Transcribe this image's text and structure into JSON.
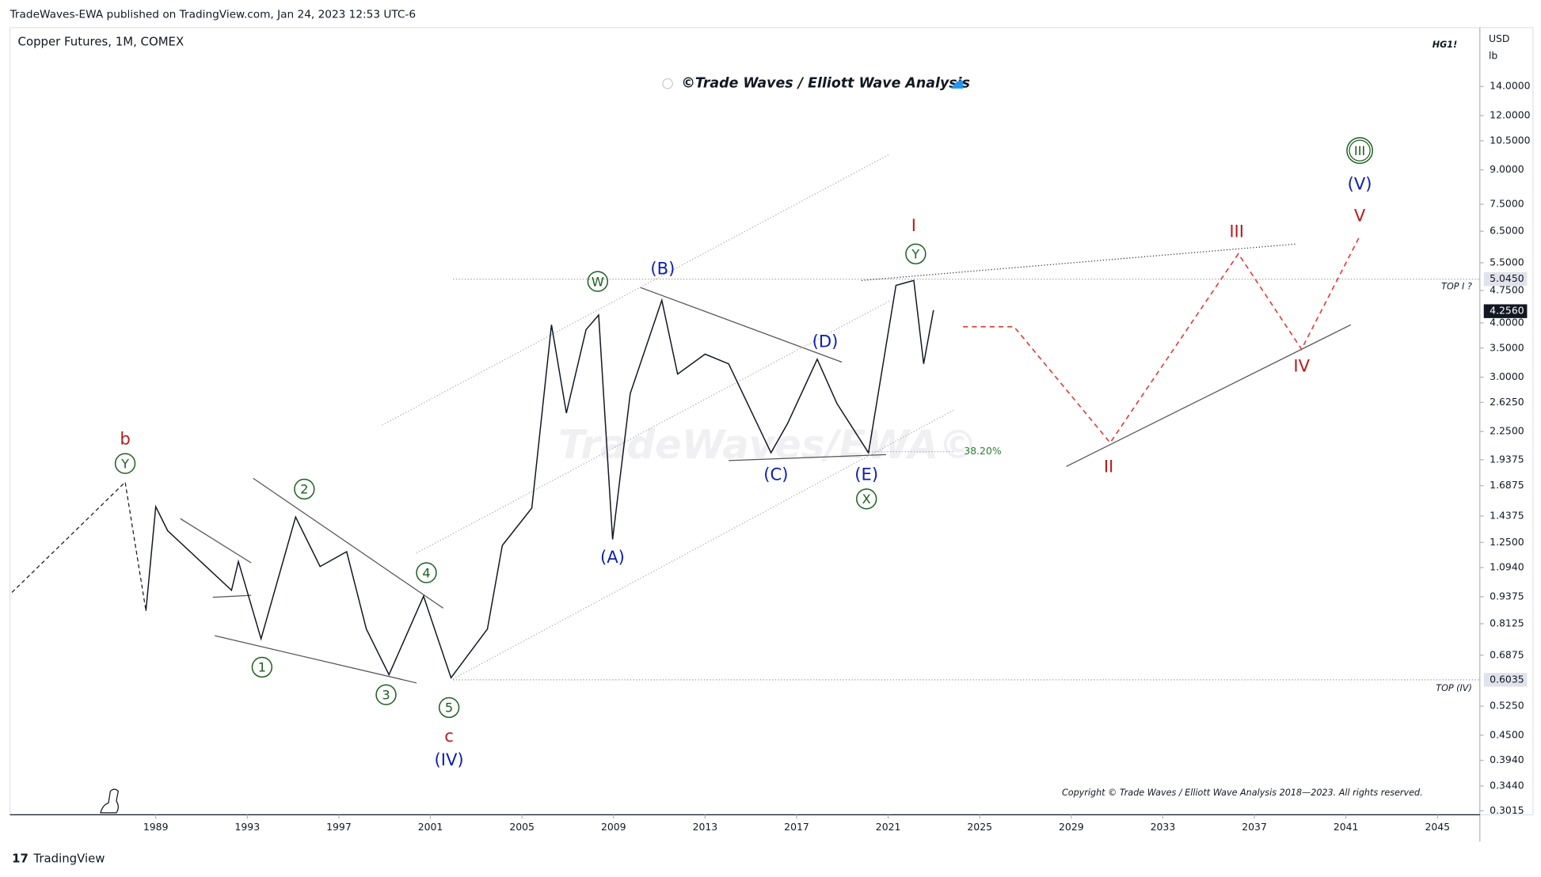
{
  "header": {
    "publisher": "TradeWaves-EWA published on TradingView.com, Jan 24, 2023 12:53 UTC-6",
    "footer": "TradingView"
  },
  "chart_data": {
    "type": "line",
    "title": "Copper Futures, 1M, COMEX",
    "subtitle": "©Trade Waves / Elliott Wave Analysis",
    "symbol": "HG1!",
    "currency": "USD",
    "unit": "lb",
    "watermark": "TradeWaves/EWA©",
    "copyright": "Copyright © Trade Waves / Elliott Wave Analysis 2018—2023. All rights reserved.",
    "log_scale": true,
    "xlim": [
      1982.63,
      2046.85
    ],
    "xticks": [
      1989,
      1993,
      1997,
      2001,
      2005,
      2009,
      2013,
      2017,
      2021,
      2025,
      2029,
      2033,
      2037,
      2041,
      2045
    ],
    "ylim": [
      0.2952,
      19.13
    ],
    "yticks": [
      {
        "value": 14,
        "label": "14.0000"
      },
      {
        "value": 12,
        "label": "12.0000"
      },
      {
        "value": 10.5,
        "label": "10.5000"
      },
      {
        "value": 9,
        "label": "9.0000"
      },
      {
        "value": 7.5,
        "label": "7.5000"
      },
      {
        "value": 6.5,
        "label": "6.5000"
      },
      {
        "value": 5.5,
        "label": "5.5000"
      },
      {
        "value": 4.75,
        "label": "4.7500"
      },
      {
        "value": 4,
        "label": "4.0000"
      },
      {
        "value": 3.5,
        "label": "3.5000"
      },
      {
        "value": 3,
        "label": "3.0000"
      },
      {
        "value": 2.625,
        "label": "2.6250"
      },
      {
        "value": 2.25,
        "label": "2.2500"
      },
      {
        "value": 1.9375,
        "label": "1.9375"
      },
      {
        "value": 1.6875,
        "label": "1.6875"
      },
      {
        "value": 1.4375,
        "label": "1.4375"
      },
      {
        "value": 1.25,
        "label": "1.2500"
      },
      {
        "value": 1.094,
        "label": "1.0940"
      },
      {
        "value": 0.9375,
        "label": "0.9375"
      },
      {
        "value": 0.8125,
        "label": "0.8125"
      },
      {
        "value": 0.6875,
        "label": "0.6875"
      },
      {
        "value": 0.525,
        "label": "0.5250"
      },
      {
        "value": 0.45,
        "label": "0.4500"
      },
      {
        "value": 0.394,
        "label": "0.3940"
      },
      {
        "value": 0.344,
        "label": "0.3440"
      },
      {
        "value": 0.3015,
        "label": "0.3015"
      }
    ],
    "price_markers": [
      {
        "value": 5.045,
        "label": "5.0450",
        "name": "TOP I ?"
      },
      {
        "value": 4.256,
        "label": "4.2560"
      },
      {
        "value": 0.6035,
        "label": "0.6035",
        "name": "TOP (IV)"
      }
    ],
    "fib_label": "38.20%",
    "series": [
      {
        "name": "Copper",
        "color": "#131722",
        "x": [
          1988.57,
          1989.0,
          1989.52,
          1992.31,
          1992.61,
          1993.6,
          1995.11,
          1996.18,
          1997.34,
          1998.2,
          1999.19,
          2000.7,
          2001.9,
          2003.49,
          2004.14,
          2005.43,
          2006.29,
          2006.94,
          2007.8,
          2008.35,
          2008.96,
          2009.73,
          2011.11,
          2011.8,
          2013.0,
          2014.03,
          2015.88,
          2016.61,
          2017.9,
          2018.76,
          2020.14,
          2021.34,
          2022.12,
          2022.55,
          2022.98
        ],
        "values": [
          0.87,
          1.51,
          1.33,
          0.97,
          1.13,
          0.75,
          1.43,
          1.1,
          1.19,
          0.79,
          0.62,
          0.94,
          0.61,
          0.79,
          1.23,
          1.5,
          3.96,
          2.48,
          3.86,
          4.17,
          1.27,
          2.75,
          4.51,
          3.05,
          3.39,
          3.22,
          2.01,
          2.35,
          3.3,
          2.61,
          2.01,
          4.88,
          5.01,
          3.22,
          4.28
        ]
      },
      {
        "name": "Projection",
        "color": "#e53935",
        "x": [
          2024.27,
          2026.5,
          2030.7,
          2036.3,
          2039.06,
          2041.6
        ],
        "values": [
          3.92,
          3.92,
          2.12,
          5.77,
          3.48,
          6.33
        ]
      }
    ],
    "waves": [
      {
        "text": "b",
        "style": "red"
      },
      {
        "text": "Y",
        "style": "circle"
      },
      {
        "text": "1",
        "style": "circle"
      },
      {
        "text": "2",
        "style": "circle"
      },
      {
        "text": "3",
        "style": "circle"
      },
      {
        "text": "4",
        "style": "circle"
      },
      {
        "text": "5",
        "style": "circle"
      },
      {
        "text": "c",
        "style": "red"
      },
      {
        "text": "(IV)",
        "style": "blue"
      },
      {
        "text": "W",
        "style": "circle"
      },
      {
        "text": "(A)",
        "style": "blue"
      },
      {
        "text": "(B)",
        "style": "blue"
      },
      {
        "text": "(C)",
        "style": "blue"
      },
      {
        "text": "(D)",
        "style": "blue"
      },
      {
        "text": "(E)",
        "style": "blue"
      },
      {
        "text": "X",
        "style": "circle"
      },
      {
        "text": "I",
        "style": "red"
      },
      {
        "text": "Y",
        "style": "circle"
      },
      {
        "text": "II",
        "style": "red"
      },
      {
        "text": "III",
        "style": "red"
      },
      {
        "text": "IV",
        "style": "red"
      },
      {
        "text": "V",
        "style": "red"
      },
      {
        "text": "(V)",
        "style": "blue"
      },
      {
        "text": "III",
        "style": "double-circle"
      }
    ]
  }
}
